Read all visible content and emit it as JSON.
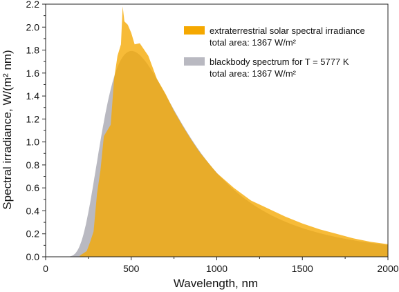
{
  "chart_data": {
    "type": "area",
    "xlabel": "Wavelength, nm",
    "ylabel": "Spectral irradiance, W/(m² nm)",
    "xlim": [
      0,
      2000
    ],
    "ylim": [
      0,
      2.2
    ],
    "x_ticks": [
      0,
      500,
      1000,
      1500,
      2000
    ],
    "y_ticks": [
      0.0,
      0.2,
      0.4,
      0.6,
      0.8,
      1.0,
      1.2,
      1.4,
      1.6,
      1.8,
      2.0,
      2.2
    ],
    "x_tick_labels": [
      "0",
      "500",
      "1000",
      "1500",
      "2000"
    ],
    "y_tick_labels": [
      "0.0",
      "0.2",
      "0.4",
      "0.6",
      "0.8",
      "1.0",
      "1.2",
      "1.4",
      "1.6",
      "1.8",
      "2.0",
      "2.2"
    ],
    "grid": false,
    "legend_position": "top-right",
    "series": [
      {
        "name": "extraterrestrial solar spectral irradiance",
        "annotation": "total area: 1367 W/m²",
        "color": "#f5a800",
        "x": [
          200,
          240,
          260,
          280,
          300,
          320,
          340,
          360,
          380,
          400,
          420,
          440,
          450,
          460,
          480,
          500,
          520,
          550,
          600,
          650,
          700,
          750,
          800,
          850,
          900,
          950,
          1000,
          1100,
          1200,
          1300,
          1400,
          1500,
          1600,
          1700,
          1800,
          1900,
          2000
        ],
        "y": [
          0.01,
          0.05,
          0.13,
          0.22,
          0.55,
          0.75,
          1.05,
          1.1,
          1.15,
          1.55,
          1.75,
          1.85,
          2.18,
          2.05,
          2.02,
          1.95,
          1.85,
          1.86,
          1.75,
          1.55,
          1.42,
          1.27,
          1.14,
          1.02,
          0.91,
          0.82,
          0.73,
          0.6,
          0.49,
          0.42,
          0.35,
          0.29,
          0.24,
          0.2,
          0.16,
          0.13,
          0.11
        ]
      },
      {
        "name": "blackbody spectrum for T = 5777 K",
        "annotation": "total area: 1367 W/m²",
        "color": "#b9b9c1",
        "temperature_K": 5777,
        "total_area_W_m2": 1367
      }
    ]
  }
}
